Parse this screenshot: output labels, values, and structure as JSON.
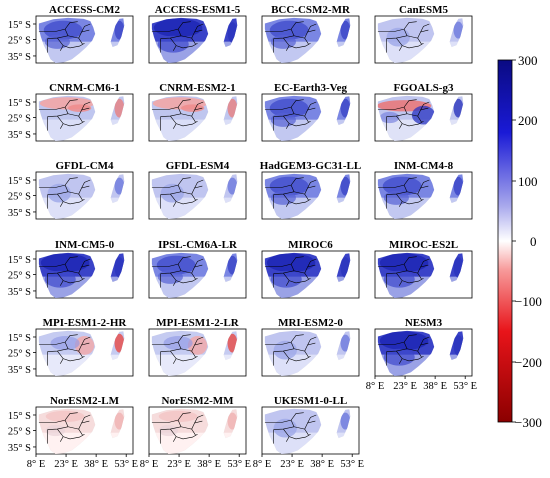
{
  "panels": [
    {
      "title": "ACCESS-CM2",
      "pattern": "blue_mod"
    },
    {
      "title": "ACCESS-ESM1-5",
      "pattern": "blue_high"
    },
    {
      "title": "BCC-CSM2-MR",
      "pattern": "blue_mod"
    },
    {
      "title": "CanESM5",
      "pattern": "blue_light"
    },
    {
      "title": "CNRM-CM6-1",
      "pattern": "red_north"
    },
    {
      "title": "CNRM-ESM2-1",
      "pattern": "red_north"
    },
    {
      "title": "EC-Earth3-Veg",
      "pattern": "blue_mod"
    },
    {
      "title": "FGOALS-g3",
      "pattern": "mixed_strong"
    },
    {
      "title": "GFDL-CM4",
      "pattern": "blue_light"
    },
    {
      "title": "GFDL-ESM4",
      "pattern": "blue_light"
    },
    {
      "title": "HadGEM3-GC31-LL",
      "pattern": "blue_mod"
    },
    {
      "title": "INM-CM4-8",
      "pattern": "blue_mod"
    },
    {
      "title": "INM-CM5-0",
      "pattern": "blue_high"
    },
    {
      "title": "IPSL-CM6A-LR",
      "pattern": "blue_mod"
    },
    {
      "title": "MIROC6",
      "pattern": "blue_high"
    },
    {
      "title": "MIROC-ES2L",
      "pattern": "blue_high"
    },
    {
      "title": "MPI-ESM1-2-HR",
      "pattern": "red_east"
    },
    {
      "title": "MPI-ESM1-2-LR",
      "pattern": "red_east"
    },
    {
      "title": "MRI-ESM2-0",
      "pattern": "blue_light"
    },
    {
      "title": "NESM3",
      "pattern": "blue_high"
    },
    {
      "title": "NorESM2-LM",
      "pattern": "pale_red"
    },
    {
      "title": "NorESM2-MM",
      "pattern": "pale_red"
    },
    {
      "title": "UKESM1-0-LL",
      "pattern": "blue_light"
    }
  ],
  "y_ticks": [
    "15° S",
    "25° S",
    "35° S"
  ],
  "x_ticks": [
    "8° E",
    "23° E",
    "38° E",
    "53° E"
  ],
  "colorbar": {
    "ticks": [
      "300",
      "200",
      "100",
      "0",
      "−100",
      "−200",
      "−300"
    ],
    "min": -300,
    "max": 300,
    "colors": [
      "#8b0000",
      "#e8141a",
      "#f79a9a",
      "#ffffff",
      "#a6a6ec",
      "#1a1ad6",
      "#0a0a82"
    ]
  }
}
